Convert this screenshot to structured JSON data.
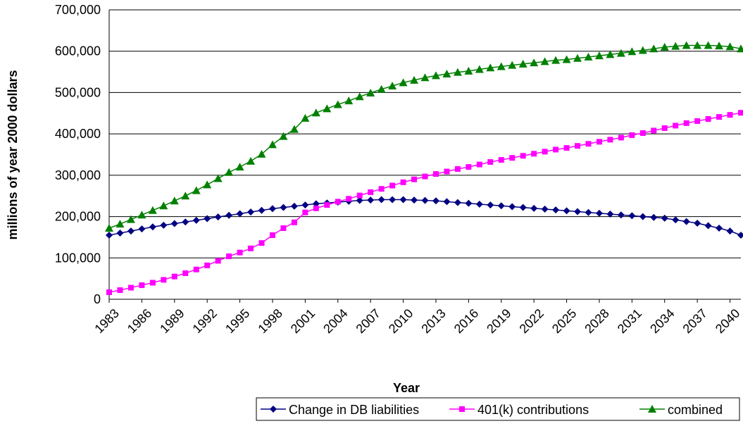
{
  "chart_data": {
    "type": "line",
    "x_label": "Year",
    "y_label": "millions of year 2000 dollars",
    "x": [
      1983,
      1984,
      1985,
      1986,
      1987,
      1988,
      1989,
      1990,
      1991,
      1992,
      1993,
      1994,
      1995,
      1996,
      1997,
      1998,
      1999,
      2000,
      2001,
      2002,
      2003,
      2004,
      2005,
      2006,
      2007,
      2008,
      2009,
      2010,
      2011,
      2012,
      2013,
      2014,
      2015,
      2016,
      2017,
      2018,
      2019,
      2020,
      2021,
      2022,
      2023,
      2024,
      2025,
      2026,
      2027,
      2028,
      2029,
      2030,
      2031,
      2032,
      2033,
      2034,
      2035,
      2036,
      2037,
      2038,
      2039,
      2040,
      2041
    ],
    "xlim": [
      1983,
      2041
    ],
    "xticks": [
      1983,
      1986,
      1989,
      1992,
      1995,
      1998,
      2001,
      2004,
      2007,
      2010,
      2013,
      2016,
      2019,
      2022,
      2025,
      2028,
      2031,
      2034,
      2037,
      2040
    ],
    "ylim": [
      0,
      700000
    ],
    "yticks": [
      0,
      {
        "value": 100000,
        "label": "100,000"
      },
      {
        "value": 200000,
        "label": "200,000"
      },
      {
        "value": 300000,
        "label": "300,000"
      },
      {
        "value": 400000,
        "label": "400,000"
      },
      {
        "value": 500000,
        "label": "500,000"
      },
      {
        "value": 600000,
        "label": "600,000"
      },
      {
        "value": 700000,
        "label": "700,000"
      }
    ],
    "grid": true,
    "legend": "bottom-right",
    "series": [
      {
        "name": "Change in DB liabilities",
        "color": "#000080",
        "marker": "diamond",
        "values": [
          155000,
          160000,
          165000,
          170000,
          175000,
          179000,
          183000,
          187000,
          191000,
          195000,
          199000,
          203000,
          207000,
          211000,
          215000,
          219000,
          222000,
          225000,
          228000,
          231000,
          233000,
          235000,
          237000,
          239000,
          240000,
          241000,
          241000,
          241000,
          240000,
          239000,
          238000,
          236000,
          234000,
          232000,
          230000,
          228000,
          226000,
          224000,
          222000,
          220000,
          218000,
          216000,
          214000,
          212000,
          210000,
          208000,
          206000,
          204000,
          202000,
          200000,
          198000,
          196000,
          192000,
          188000,
          184000,
          178000,
          172000,
          165000,
          155000
        ]
      },
      {
        "name": "401(k) contributions",
        "color": "#ff00ff",
        "marker": "square",
        "values": [
          17000,
          22000,
          28000,
          34000,
          40000,
          47000,
          55000,
          63000,
          72000,
          82000,
          93000,
          104000,
          113000,
          123000,
          136000,
          155000,
          172000,
          186000,
          210000,
          220000,
          228000,
          236000,
          243000,
          251000,
          259000,
          267000,
          275000,
          283000,
          290000,
          297000,
          303000,
          309000,
          315000,
          320000,
          326000,
          332000,
          337000,
          342000,
          347000,
          352000,
          357000,
          362000,
          366000,
          371000,
          376000,
          381000,
          386000,
          391000,
          397000,
          402000,
          408000,
          414000,
          420000,
          426000,
          431000,
          436000,
          441000,
          446000,
          451000
        ]
      },
      {
        "name": "combined",
        "color": "#008000",
        "marker": "triangle",
        "values": [
          172000,
          182000,
          193000,
          204000,
          215000,
          226000,
          238000,
          250000,
          263000,
          277000,
          292000,
          307000,
          320000,
          334000,
          351000,
          374000,
          394000,
          411000,
          438000,
          451000,
          461000,
          471000,
          480000,
          490000,
          499000,
          508000,
          516000,
          524000,
          530000,
          536000,
          541000,
          545000,
          549000,
          552000,
          556000,
          560000,
          563000,
          566000,
          569000,
          572000,
          575000,
          578000,
          580000,
          583000,
          586000,
          589000,
          592000,
          595000,
          599000,
          602000,
          606000,
          610000,
          612000,
          614000,
          614000,
          614000,
          613000,
          611000,
          606000
        ]
      }
    ]
  }
}
